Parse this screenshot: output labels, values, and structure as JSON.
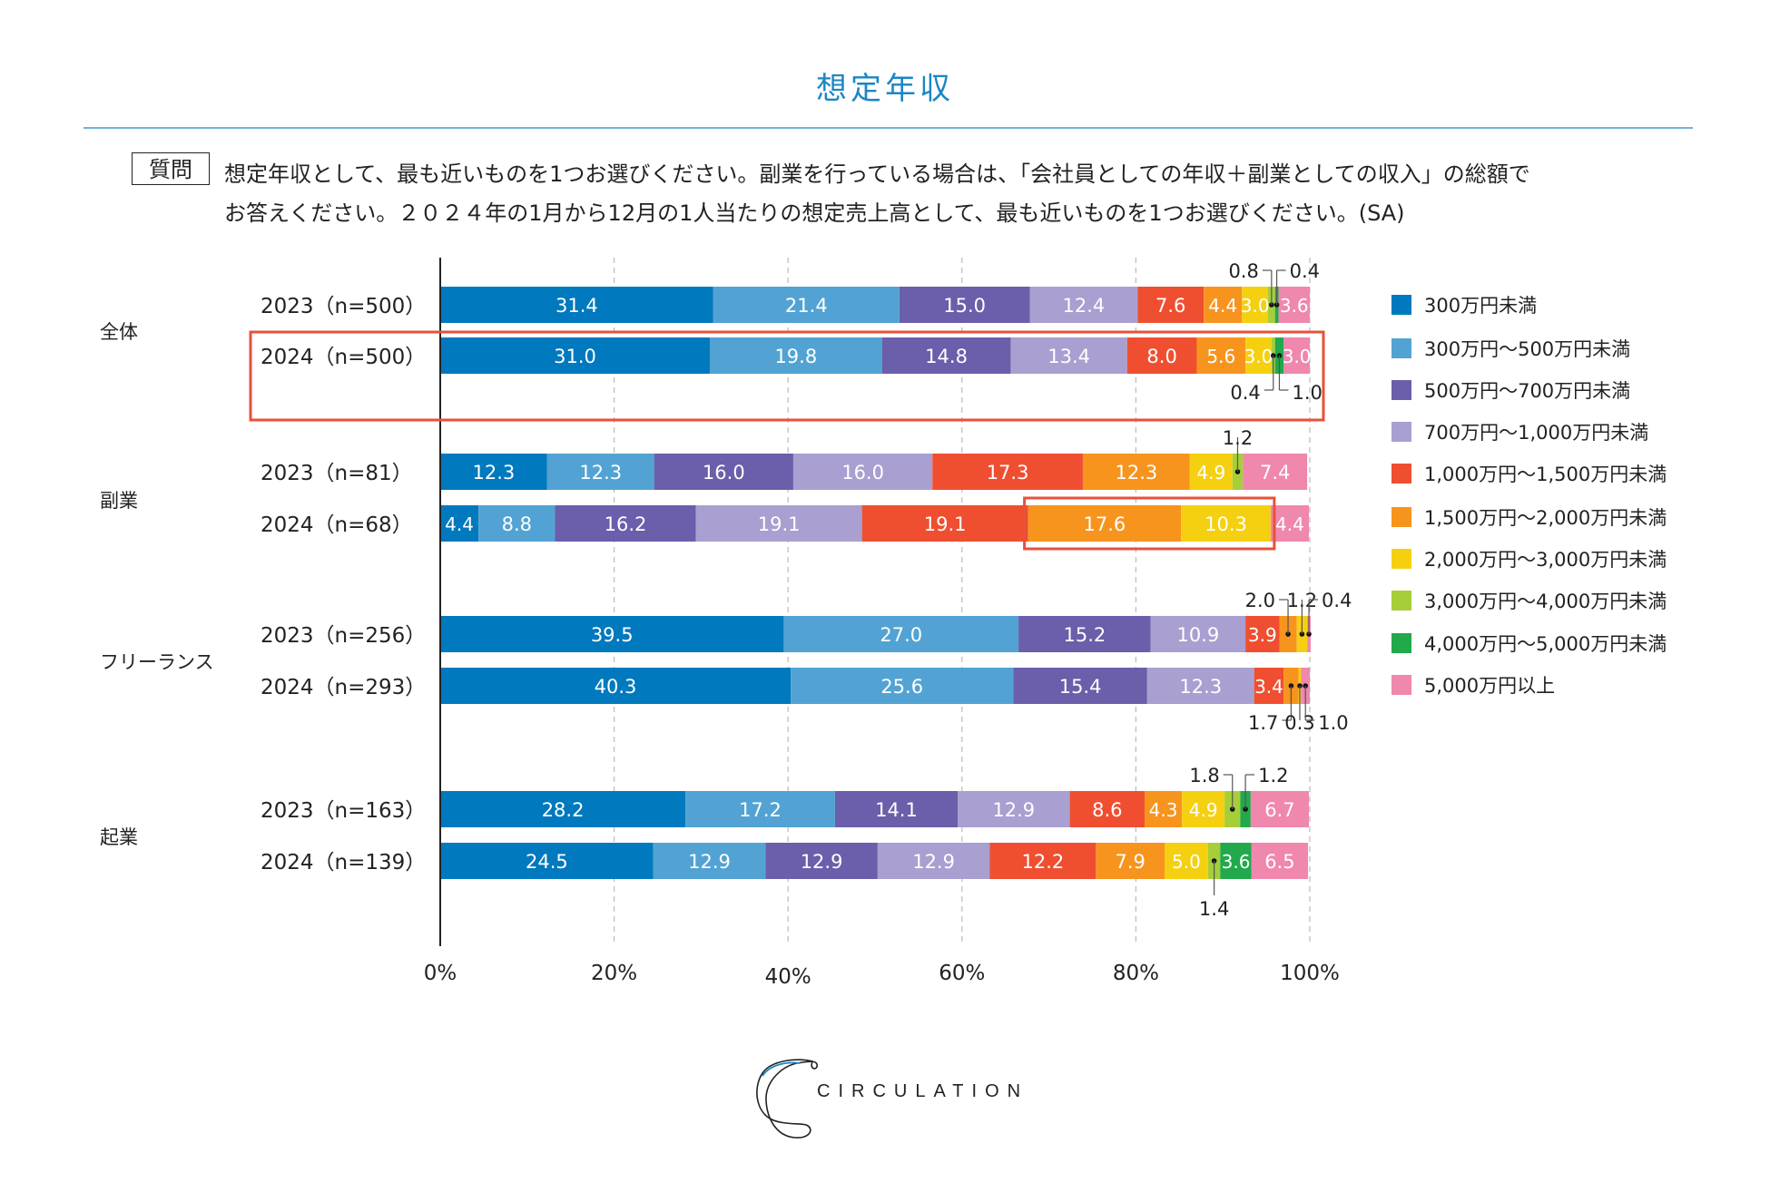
{
  "title": "想定年収",
  "question": {
    "badge": "質問",
    "line1": "想定年収として、最も近いものを1つお選びください。副業を行っている場合は、「会社員としての年収＋副業としての収入」の総額で",
    "line2": "お答えください。２０２４年の1月から12月の1人当たりの想定売上高として、最も近いものを1つお選びください。(SA)"
  },
  "logo": {
    "text": "CIRCULATION"
  },
  "chart_data": {
    "type": "bar",
    "orientation": "horizontal-stacked-100",
    "title": "想定年収",
    "xlabel": "",
    "ylabel": "",
    "xlim": [
      0,
      100
    ],
    "x_ticks": [
      "0%",
      "20%",
      "40%",
      "60%",
      "80%",
      "100%"
    ],
    "grid": true,
    "legend_position": "right",
    "series_names": [
      "300万円未満",
      "300万円～500万円未満",
      "500万円～700万円未満",
      "700万円～1,000万円未満",
      "1,000万円～1,500万円未満",
      "1,500万円～2,000万円未満",
      "2,000万円～3,000万円未満",
      "3,000万円～4,000万円未満",
      "4,000万円～5,000万円未満",
      "5,000万円以上"
    ],
    "colors": [
      "#0079be",
      "#52a3d3",
      "#6b5eaa",
      "#a99fd0",
      "#ef4f30",
      "#f7941e",
      "#f5d010",
      "#a6ce39",
      "#22a94b",
      "#f087ad"
    ],
    "groups": [
      {
        "name": "全体",
        "rows": [
          {
            "label": "2023（n=500）",
            "values": [
              31.4,
              21.4,
              15.0,
              12.4,
              7.6,
              4.4,
              3.0,
              0.8,
              0.4,
              3.6
            ]
          },
          {
            "label": "2024（n=500）",
            "values": [
              31.0,
              19.8,
              14.8,
              13.4,
              8.0,
              5.6,
              3.0,
              0.4,
              1.0,
              3.0
            ]
          }
        ]
      },
      {
        "name": "副業",
        "rows": [
          {
            "label": "2023（n=81）",
            "values": [
              12.3,
              12.3,
              16.0,
              16.0,
              17.3,
              12.3,
              4.9,
              1.2,
              0,
              7.4
            ]
          },
          {
            "label": "2024（n=68）",
            "values": [
              4.4,
              8.8,
              16.2,
              19.1,
              19.1,
              17.6,
              10.3,
              0,
              0,
              4.4
            ]
          }
        ]
      },
      {
        "name": "フリーランス",
        "rows": [
          {
            "label": "2023（n=256）",
            "values": [
              39.5,
              27.0,
              15.2,
              10.9,
              3.9,
              2.0,
              1.2,
              0,
              0,
              0.4
            ]
          },
          {
            "label": "2024（n=293）",
            "values": [
              40.3,
              25.6,
              15.4,
              12.3,
              3.4,
              1.7,
              0.3,
              0,
              0,
              1.0
            ]
          }
        ]
      },
      {
        "name": "起業",
        "rows": [
          {
            "label": "2023（n=163）",
            "values": [
              28.2,
              17.2,
              14.1,
              12.9,
              8.6,
              4.3,
              4.9,
              1.8,
              1.2,
              6.7
            ]
          },
          {
            "label": "2024（n=139）",
            "values": [
              24.5,
              12.9,
              12.9,
              12.9,
              12.2,
              7.9,
              5.0,
              1.4,
              3.6,
              6.5
            ]
          }
        ]
      }
    ],
    "callouts": [
      {
        "row": "全体 2023",
        "series": 7,
        "text": "0.8",
        "side": "above"
      },
      {
        "row": "全体 2023",
        "series": 8,
        "text": "0.4",
        "side": "above"
      },
      {
        "row": "全体 2024",
        "series": 7,
        "text": "0.4",
        "side": "below"
      },
      {
        "row": "全体 2024",
        "series": 8,
        "text": "1.0",
        "side": "below"
      },
      {
        "row": "副業 2023",
        "series": 7,
        "text": "1.2",
        "side": "above"
      },
      {
        "row": "フリーランス 2023",
        "series": 5,
        "text": "2.0",
        "side": "above"
      },
      {
        "row": "フリーランス 2023",
        "series": 6,
        "text": "1.2",
        "side": "above"
      },
      {
        "row": "フリーランス 2023",
        "series": 9,
        "text": "0.4",
        "side": "above"
      },
      {
        "row": "フリーランス 2024",
        "series": 5,
        "text": "1.7",
        "side": "below"
      },
      {
        "row": "フリーランス 2024",
        "series": 6,
        "text": "0.3",
        "side": "below"
      },
      {
        "row": "フリーランス 2024",
        "series": 9,
        "text": "1.0",
        "side": "below"
      },
      {
        "row": "起業 2023",
        "series": 7,
        "text": "1.8",
        "side": "above"
      },
      {
        "row": "起業 2023",
        "series": 8,
        "text": "1.2",
        "side": "above"
      },
      {
        "row": "起業 2024",
        "series": 7,
        "text": "1.4",
        "side": "below"
      }
    ],
    "highlights": [
      {
        "target": "全体 2024 row"
      },
      {
        "target": "副業 2024 segments 1,500万円～2,000万円未満 and 2,000万円～3,000万円未満"
      }
    ],
    "highlight_color": "#e8513a"
  }
}
